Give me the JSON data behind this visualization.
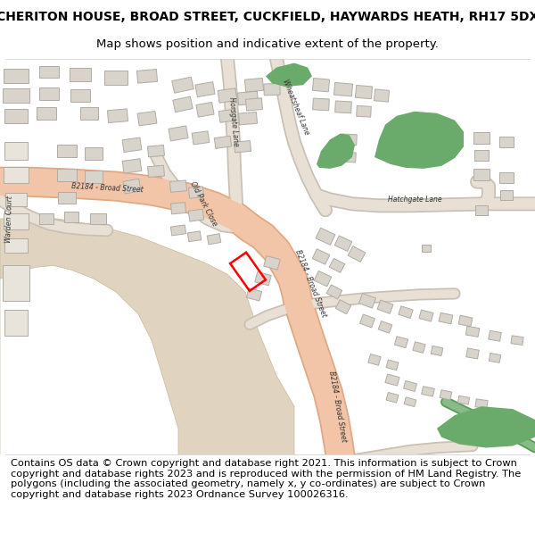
{
  "title_line1": "CHERITON HOUSE, BROAD STREET, CUCKFIELD, HAYWARDS HEATH, RH17 5DX",
  "title_line2": "Map shows position and indicative extent of the property.",
  "footer_text": "Contains OS data © Crown copyright and database right 2021. This information is subject to Crown copyright and database rights 2023 and is reproduced with the permission of HM Land Registry. The polygons (including the associated geometry, namely x, y co-ordinates) are subject to Crown copyright and database rights 2023 Ordnance Survey 100026316.",
  "title_fontsize": 10,
  "subtitle_fontsize": 9.5,
  "footer_fontsize": 8.2,
  "road_color": "#f2c4a8",
  "road_edge_color": "#e0a882",
  "secondary_road_color": "#e8e0d4",
  "secondary_road_edge": "#c8c0b4",
  "building_color": "#d8d4cc",
  "building_edge": "#b0aca4",
  "green_color": "#6aaa6a",
  "beige_area_color": "#e0d4c0",
  "map_bg": "#ffffff"
}
